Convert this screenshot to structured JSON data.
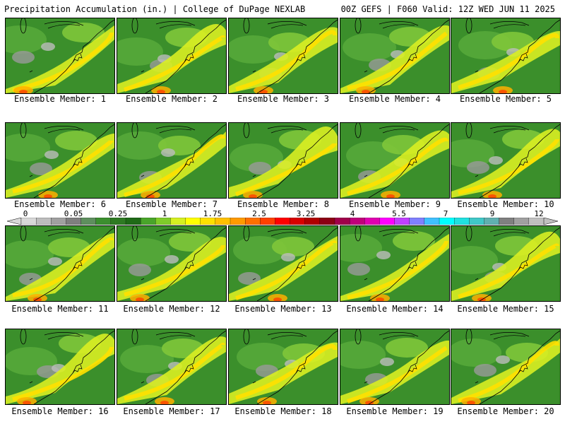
{
  "header": {
    "left_title": "Precipitation Accumulation (in.) | College of DuPage NEXLAB",
    "right_title": "00Z GEFS | F060 Valid: 12Z WED JUN 11 2025"
  },
  "colorbar": {
    "tick_labels": [
      "0",
      "0.05",
      "0.25",
      "1",
      "1.75",
      "2.5",
      "3.25",
      "4",
      "5.5",
      "7",
      "9",
      "12"
    ],
    "colors": [
      "#d8d8d8",
      "#bdbdbd",
      "#a0a0a0",
      "#7f7f7f",
      "#5e8f5e",
      "#3c8f2f",
      "#2e7a23",
      "#1f6a17",
      "#49a52a",
      "#7fcc2a",
      "#d6f021",
      "#ffff00",
      "#ffe000",
      "#ffc000",
      "#ff9a00",
      "#ff7000",
      "#ff4000",
      "#ff0000",
      "#d80000",
      "#b00000",
      "#8c0014",
      "#a0004a",
      "#c0007a",
      "#e000b0",
      "#ff00ff",
      "#c040ff",
      "#8080ff",
      "#40c0ff",
      "#00ffff",
      "#20e0e0",
      "#40c8c8",
      "#60b0b0",
      "#808080",
      "#a0a0a0",
      "#c0c0c0"
    ]
  },
  "panels": [
    {
      "label": "Ensemble Member: 1"
    },
    {
      "label": "Ensemble Member: 2"
    },
    {
      "label": "Ensemble Member: 3"
    },
    {
      "label": "Ensemble Member: 4"
    },
    {
      "label": "Ensemble Member: 5"
    },
    {
      "label": "Ensemble Member: 6"
    },
    {
      "label": "Ensemble Member: 7"
    },
    {
      "label": "Ensemble Member: 8"
    },
    {
      "label": "Ensemble Member: 9"
    },
    {
      "label": "Ensemble Member: 10"
    },
    {
      "label": "Ensemble Member: 11"
    },
    {
      "label": "Ensemble Member: 12"
    },
    {
      "label": "Ensemble Member: 13"
    },
    {
      "label": "Ensemble Member: 14"
    },
    {
      "label": "Ensemble Member: 15"
    },
    {
      "label": "Ensemble Member: 16"
    },
    {
      "label": "Ensemble Member: 17"
    },
    {
      "label": "Ensemble Member: 18"
    },
    {
      "label": "Ensemble Member: 19"
    },
    {
      "label": "Ensemble Member: 20"
    }
  ]
}
